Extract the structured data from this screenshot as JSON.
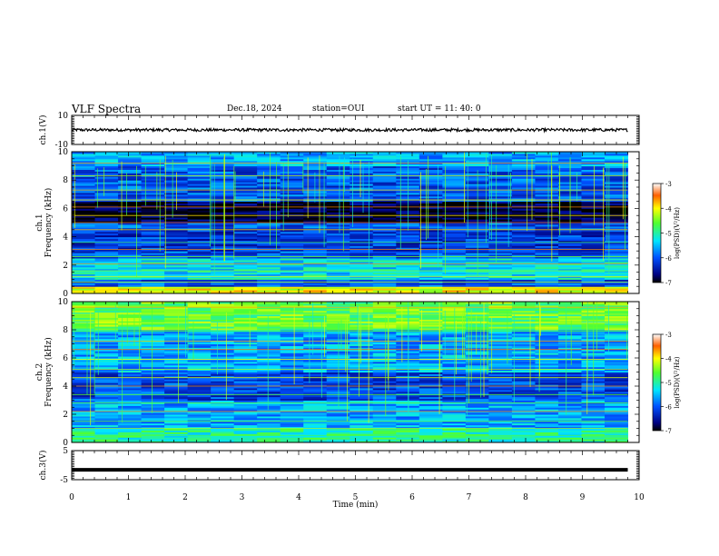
{
  "header": {
    "title": "VLF Spectra",
    "date": "Dec.18, 2024",
    "station": "station=OUI",
    "start": "start UT =  11: 40: 0"
  },
  "chart_data": [
    {
      "type": "line",
      "panel": "ch1-waveform",
      "ylabel": "ch.1(V)",
      "ylim": [
        -10,
        10
      ],
      "y_ticks": [
        -10,
        10
      ],
      "xlim": [
        0,
        10
      ],
      "series": [
        {
          "x_range": [
            0,
            9.8
          ],
          "mean": 0,
          "amplitude": 1
        }
      ],
      "color": "#000000"
    },
    {
      "type": "heatmap",
      "panel": "ch1-spectrogram",
      "ylabel_top": "ch.1",
      "ylabel": "Frequency (kHz)",
      "ylim": [
        0,
        10
      ],
      "y_ticks": [
        0,
        2,
        4,
        6,
        8,
        10
      ],
      "xlim": [
        0,
        10
      ],
      "data_x_range": [
        0,
        9.8
      ],
      "colorbar": {
        "label": "log(PSD)(V²/Hz)",
        "range": [
          -7,
          -3
        ],
        "ticks": [
          -3,
          -4,
          -5,
          -6,
          -7
        ]
      },
      "bands": [
        {
          "f": [
            9.0,
            10.0
          ],
          "level": -5.6
        },
        {
          "f": [
            7.0,
            9.0
          ],
          "level": -6.0
        },
        {
          "f": [
            5.0,
            6.5
          ],
          "level": -6.9
        },
        {
          "f": [
            3.0,
            4.5
          ],
          "level": -6.2
        },
        {
          "f": [
            1.0,
            2.5
          ],
          "level": -5.3
        },
        {
          "f": [
            0.0,
            0.5
          ],
          "level": -4.0
        }
      ],
      "lines_khz": [
        0.4,
        0.8,
        1.2,
        1.6,
        2.1,
        2.6,
        3.1,
        3.6,
        4.5,
        5.0,
        5.5,
        6.1,
        6.6,
        7.3,
        8.3,
        9.2
      ]
    },
    {
      "type": "heatmap",
      "panel": "ch2-spectrogram",
      "ylabel_top": "ch.2",
      "ylabel": "Frequency (kHz)",
      "ylim": [
        0,
        10
      ],
      "y_ticks": [
        0,
        2,
        4,
        6,
        8,
        10
      ],
      "xlim": [
        0,
        10
      ],
      "data_x_range": [
        0,
        9.8
      ],
      "colorbar": {
        "label": "log(PSD)(V²/Hz)",
        "range": [
          -7,
          -3
        ],
        "ticks": [
          -3,
          -4,
          -5,
          -6,
          -7
        ]
      },
      "bands": [
        {
          "f": [
            8.0,
            10.0
          ],
          "level": -4.6
        },
        {
          "f": [
            5.0,
            8.0
          ],
          "level": -5.6
        },
        {
          "f": [
            3.0,
            5.0
          ],
          "level": -6.1
        },
        {
          "f": [
            1.0,
            3.0
          ],
          "level": -5.6
        },
        {
          "f": [
            0.0,
            1.0
          ],
          "level": -5.0
        }
      ],
      "lines_khz": [
        0.5,
        1.0,
        1.5,
        2.2,
        2.8,
        3.4,
        4.0,
        4.6,
        5.2,
        5.9,
        6.6,
        7.2,
        7.9,
        8.5,
        9.1,
        9.6
      ]
    },
    {
      "type": "line",
      "panel": "ch3-waveform",
      "ylabel": "ch.3(V)",
      "ylim": [
        -5,
        5
      ],
      "y_ticks": [
        -5,
        5
      ],
      "xlim": [
        0,
        10
      ],
      "series": [
        {
          "x_range": [
            0,
            9.8
          ],
          "mean": -1.6,
          "amplitude": 0.15
        }
      ],
      "color": "#000000"
    }
  ],
  "x_axis": {
    "xlabel": "Time (min)",
    "ticks": [
      "0",
      "1",
      "2",
      "3",
      "4",
      "5",
      "6",
      "7",
      "8",
      "9",
      "10"
    ]
  }
}
